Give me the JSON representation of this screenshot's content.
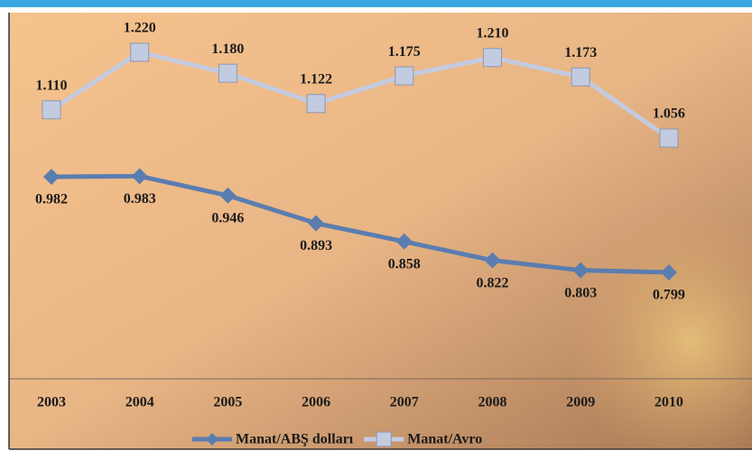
{
  "chart_data": {
    "type": "line",
    "categories": [
      "2003",
      "2004",
      "2005",
      "2006",
      "2007",
      "2008",
      "2009",
      "2010"
    ],
    "series": [
      {
        "name": "Manat/ABŞ dolları",
        "color": "#5a7db0",
        "values": [
          0.982,
          0.983,
          0.946,
          0.893,
          0.858,
          0.822,
          0.803,
          0.799
        ],
        "value_labels": [
          "0.982",
          "0.983",
          "0.946",
          "0.893",
          "0.858",
          "0.822",
          "0.803",
          "0.799"
        ]
      },
      {
        "name": "Manat/Avro",
        "color": "#c3cbe0",
        "values": [
          1.11,
          1.22,
          1.18,
          1.122,
          1.175,
          1.21,
          1.173,
          1.056
        ],
        "value_labels": [
          "1.110",
          "1.220",
          "1.180",
          "1.122",
          "1.175",
          "1.210",
          "1.173",
          "1.056"
        ]
      }
    ],
    "legend": "bottom"
  }
}
